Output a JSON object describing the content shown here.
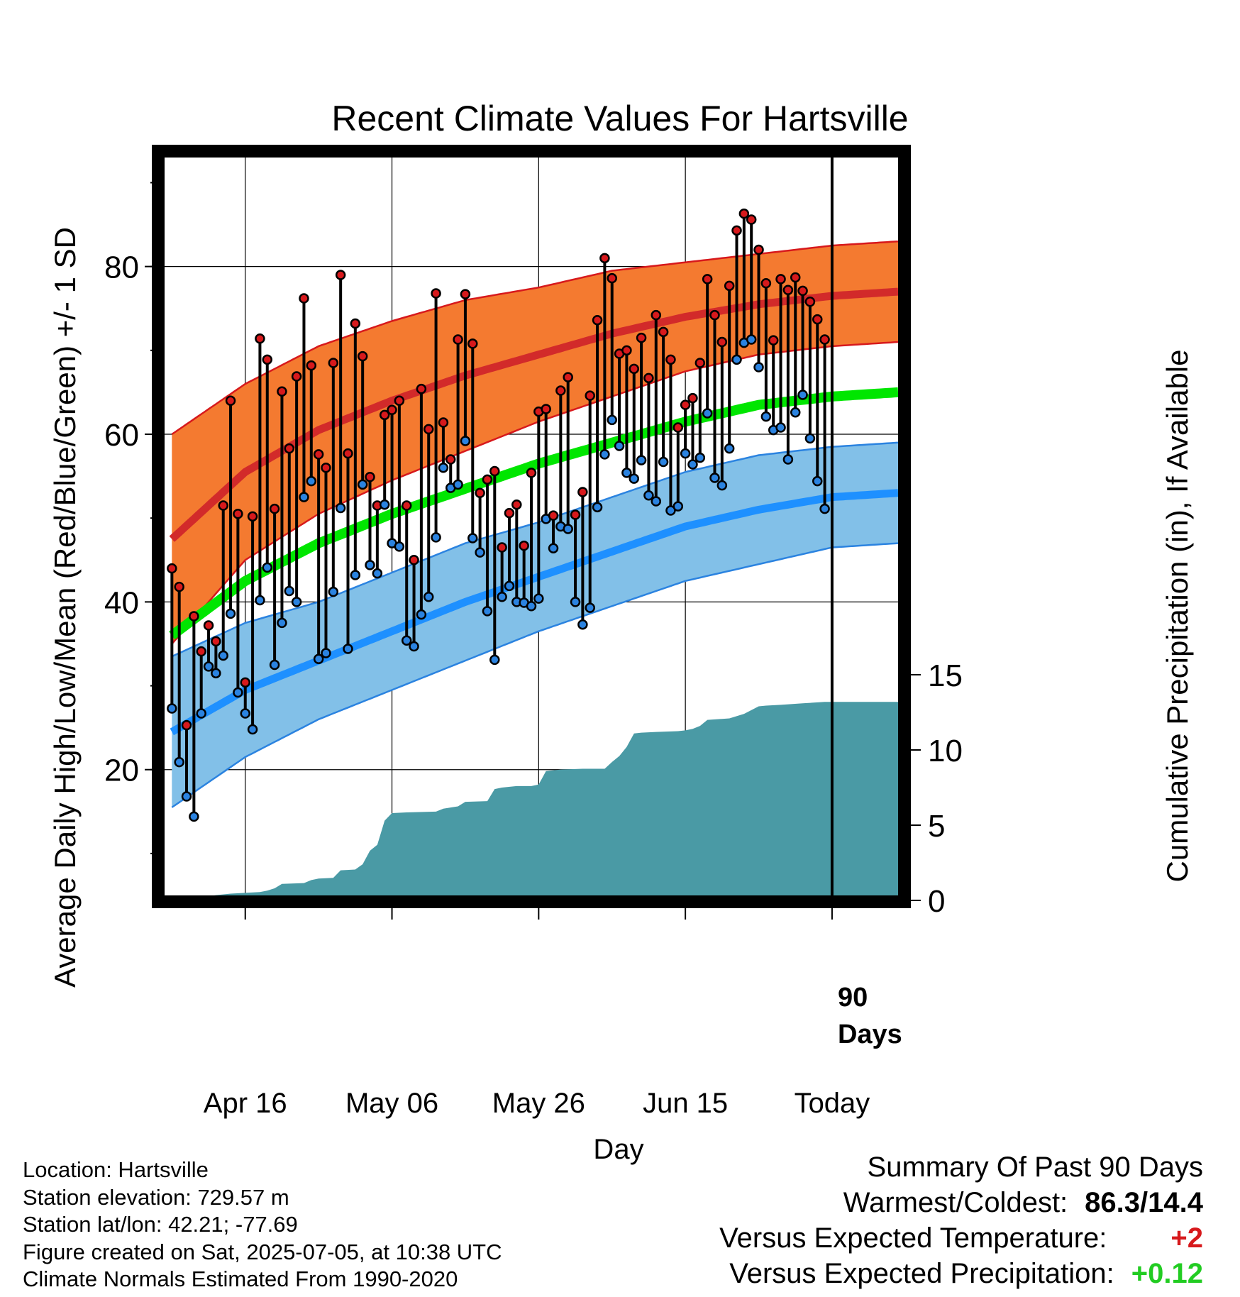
{
  "title": "Recent Climate Values For Hartsville",
  "ylabel_left": "Average Daily High/Low/Mean (Red/Blue/Green) +/- 1 SD",
  "ylabel_right": "Cumulative Precipitation (in), If Available",
  "xlabel": "Day",
  "today_label": "90\nDays",
  "info": {
    "location": "Location: Hartsville",
    "elevation": "Station elevation: 729.57 m",
    "latlon": "Station lat/lon: 42.21; -77.69",
    "created": "Figure created on Sat, 2025-07-05, at 10:38 UTC",
    "normals": "Climate Normals Estimated From 1990-2020"
  },
  "summary": {
    "heading": "Summary Of Past 90 Days",
    "warm_cold_label": "Warmest/Coldest:",
    "warm_cold_value": "86.3/14.4",
    "temp_label": "Versus Expected Temperature:",
    "temp_value": "+2",
    "precip_label": "Versus Expected Precipitation:",
    "precip_value": "+0.12"
  },
  "chart_data": {
    "type": "line",
    "x_ticks": [
      {
        "day": 10,
        "label": "Apr 16"
      },
      {
        "day": 30,
        "label": "May 06"
      },
      {
        "day": 50,
        "label": "May 26"
      },
      {
        "day": 70,
        "label": "Jun 15"
      },
      {
        "day": 90,
        "label": "Today"
      }
    ],
    "xlim": [
      -1,
      99
    ],
    "ylim_left": [
      5,
      93
    ],
    "y_ticks_left": [
      20,
      40,
      60,
      80
    ],
    "y_ticks_right": [
      0,
      5,
      10,
      15
    ],
    "today_day": 90,
    "colors": {
      "high": "#d7191c",
      "low": "#2b83e0",
      "high_band": "#f47a30",
      "high_mean": "#d22a2a",
      "low_band": "#82c0e8",
      "low_mean": "#1e90ff",
      "mean": "#00e600",
      "precip": "#4a9aa5"
    },
    "normals": [
      {
        "day": 0,
        "high": 47.5,
        "high_sd": 12.5,
        "low": 24.5,
        "low_sd": 9.0,
        "mean": 36.0
      },
      {
        "day": 10,
        "high": 55.5,
        "high_sd": 10.5,
        "low": 29.5,
        "low_sd": 8.0,
        "mean": 42.5
      },
      {
        "day": 20,
        "high": 60.5,
        "high_sd": 10.0,
        "low": 33.0,
        "low_sd": 7.0,
        "mean": 47.0
      },
      {
        "day": 30,
        "high": 64.0,
        "high_sd": 9.5,
        "low": 36.5,
        "low_sd": 7.0,
        "mean": 50.5
      },
      {
        "day": 40,
        "high": 67.0,
        "high_sd": 9.0,
        "low": 40.0,
        "low_sd": 7.0,
        "mean": 53.5
      },
      {
        "day": 50,
        "high": 69.5,
        "high_sd": 8.0,
        "low": 43.0,
        "low_sd": 6.5,
        "mean": 56.5
      },
      {
        "day": 60,
        "high": 72.0,
        "high_sd": 7.5,
        "low": 46.0,
        "low_sd": 6.5,
        "mean": 59.0
      },
      {
        "day": 70,
        "high": 74.0,
        "high_sd": 6.5,
        "low": 49.0,
        "low_sd": 6.5,
        "mean": 61.5
      },
      {
        "day": 80,
        "high": 75.5,
        "high_sd": 6.0,
        "low": 51.0,
        "low_sd": 6.5,
        "mean": 63.5
      },
      {
        "day": 90,
        "high": 76.5,
        "high_sd": 6.0,
        "low": 52.5,
        "low_sd": 6.0,
        "mean": 64.5
      },
      {
        "day": 99,
        "high": 77.0,
        "high_sd": 6.0,
        "low": 53.0,
        "low_sd": 6.0,
        "mean": 65.0
      }
    ],
    "highs": [
      44.0,
      41.8,
      25.3,
      38.3,
      34.1,
      37.2,
      35.3,
      51.5,
      64.0,
      50.5,
      30.4,
      50.2,
      71.4,
      68.9,
      51.1,
      65.1,
      58.3,
      66.9,
      76.2,
      68.2,
      57.6,
      56.0,
      68.5,
      79.0,
      57.7,
      73.2,
      69.3,
      54.9,
      51.5,
      62.3,
      62.9,
      64.0,
      51.5,
      45.0,
      65.4,
      60.6,
      76.8,
      61.4,
      57.0,
      71.3,
      76.7,
      70.8,
      53.0,
      54.6,
      55.6,
      46.5,
      50.6,
      51.6,
      46.7,
      55.4,
      62.7,
      63.0,
      50.3,
      65.2,
      66.8,
      50.4,
      53.1,
      64.6,
      73.6,
      81.0,
      78.6,
      69.6,
      70.0,
      67.8,
      71.5,
      66.7,
      74.2,
      72.2,
      68.9,
      60.8,
      63.5,
      64.3,
      68.5,
      78.5,
      74.2,
      71.0,
      77.7,
      84.3,
      86.3,
      85.6,
      82.0,
      78.0,
      71.2,
      78.5,
      77.2,
      78.7,
      77.1,
      75.8,
      73.7,
      71.3
    ],
    "lows": [
      27.3,
      20.9,
      16.8,
      14.4,
      26.7,
      32.3,
      31.5,
      33.6,
      38.6,
      29.2,
      26.7,
      24.8,
      40.2,
      44.1,
      32.5,
      37.5,
      41.3,
      40.0,
      52.5,
      54.4,
      33.2,
      33.9,
      41.2,
      51.2,
      34.4,
      43.2,
      54.0,
      44.4,
      43.4,
      51.6,
      47.0,
      46.6,
      35.4,
      34.7,
      38.5,
      40.6,
      47.7,
      56.0,
      53.6,
      54.0,
      59.2,
      47.6,
      45.9,
      38.9,
      33.1,
      40.6,
      41.9,
      40.0,
      39.9,
      39.5,
      40.4,
      49.9,
      46.4,
      49.0,
      48.7,
      40.0,
      37.3,
      39.3,
      51.3,
      57.6,
      61.7,
      58.6,
      55.4,
      54.7,
      56.9,
      52.7,
      52.0,
      56.7,
      50.9,
      51.4,
      57.7,
      56.4,
      57.2,
      62.5,
      54.8,
      53.9,
      58.3,
      68.9,
      70.9,
      71.3,
      68.0,
      62.1,
      60.5,
      60.8,
      57.0,
      62.6,
      64.7,
      59.5,
      54.4,
      51.1
    ],
    "precip_cumulative": [
      {
        "day": -1,
        "in": 0.0
      },
      {
        "day": 2,
        "in": 0.05
      },
      {
        "day": 4,
        "in": 0.2
      },
      {
        "day": 6,
        "in": 0.35
      },
      {
        "day": 8,
        "in": 0.45
      },
      {
        "day": 10,
        "in": 0.5
      },
      {
        "day": 12,
        "in": 0.55
      },
      {
        "day": 13,
        "in": 0.65
      },
      {
        "day": 14,
        "in": 0.8
      },
      {
        "day": 15,
        "in": 1.1
      },
      {
        "day": 18,
        "in": 1.15
      },
      {
        "day": 19,
        "in": 1.35
      },
      {
        "day": 20,
        "in": 1.45
      },
      {
        "day": 22,
        "in": 1.5
      },
      {
        "day": 23,
        "in": 2.0
      },
      {
        "day": 25,
        "in": 2.05
      },
      {
        "day": 26,
        "in": 2.4
      },
      {
        "day": 27,
        "in": 3.3
      },
      {
        "day": 28,
        "in": 3.7
      },
      {
        "day": 29,
        "in": 5.3
      },
      {
        "day": 30,
        "in": 5.8
      },
      {
        "day": 32,
        "in": 5.85
      },
      {
        "day": 36,
        "in": 5.9
      },
      {
        "day": 37,
        "in": 6.1
      },
      {
        "day": 39,
        "in": 6.25
      },
      {
        "day": 40,
        "in": 6.55
      },
      {
        "day": 43,
        "in": 6.6
      },
      {
        "day": 44,
        "in": 7.4
      },
      {
        "day": 45,
        "in": 7.5
      },
      {
        "day": 47,
        "in": 7.6
      },
      {
        "day": 49,
        "in": 7.6
      },
      {
        "day": 50,
        "in": 7.7
      },
      {
        "day": 51,
        "in": 8.6
      },
      {
        "day": 53,
        "in": 8.7
      },
      {
        "day": 56,
        "in": 8.75
      },
      {
        "day": 59,
        "in": 8.75
      },
      {
        "day": 60,
        "in": 9.2
      },
      {
        "day": 61,
        "in": 9.6
      },
      {
        "day": 62,
        "in": 10.2
      },
      {
        "day": 63,
        "in": 11.1
      },
      {
        "day": 64,
        "in": 11.15
      },
      {
        "day": 66,
        "in": 11.2
      },
      {
        "day": 69,
        "in": 11.25
      },
      {
        "day": 70,
        "in": 11.3
      },
      {
        "day": 71,
        "in": 11.4
      },
      {
        "day": 72,
        "in": 11.6
      },
      {
        "day": 73,
        "in": 12.0
      },
      {
        "day": 76,
        "in": 12.1
      },
      {
        "day": 78,
        "in": 12.4
      },
      {
        "day": 80,
        "in": 12.9
      },
      {
        "day": 81,
        "in": 12.95
      },
      {
        "day": 83,
        "in": 13.0
      },
      {
        "day": 86,
        "in": 13.1
      },
      {
        "day": 89,
        "in": 13.2
      },
      {
        "day": 99,
        "in": 13.2
      }
    ]
  }
}
